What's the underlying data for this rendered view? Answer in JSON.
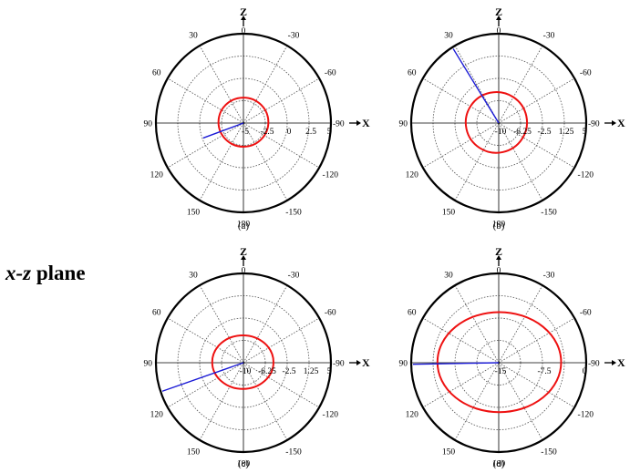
{
  "page": {
    "plane_label_italic": "x-z",
    "plane_label_rest": " plane"
  },
  "colors": {
    "pattern": "#ee1111",
    "beam": "#1a1ad6",
    "grid": "#555555",
    "frame": "#000000"
  },
  "chart_data": [
    {
      "type": "polar",
      "caption": "(a)",
      "z_label": "Z",
      "x_label": "X",
      "angle_ticks": [
        "0",
        "-30",
        "-60",
        "-90",
        "-120",
        "-150",
        "180",
        "150",
        "120",
        "90",
        "60",
        "30"
      ],
      "radial_ticks": [
        "-5",
        "-2.5",
        "0",
        "2.5",
        "5"
      ],
      "radial_range": [
        -5,
        5
      ],
      "grid": true,
      "pattern": {
        "radius_x": 2.85,
        "radius_z": 2.75,
        "center_x": 0,
        "center_z": 0.1
      },
      "beam": {
        "angle_deg": 110,
        "length": 4.9
      }
    },
    {
      "type": "polar",
      "caption": "(b)",
      "z_label": "Z",
      "x_label": "X",
      "angle_ticks": [
        "0",
        "-30",
        "-60",
        "-90",
        "-120",
        "-150",
        "180",
        "150",
        "120",
        "90",
        "60",
        "30"
      ],
      "radial_ticks": [
        "-10",
        "-6.25",
        "-2.5",
        "1.25",
        "5"
      ],
      "radial_range": [
        -10,
        5
      ],
      "grid": true,
      "pattern": {
        "radius_x": 5.25,
        "radius_z": 5.1,
        "center_x": -0.4,
        "center_z": 0.1,
        "rotation": -12
      },
      "beam": {
        "angle_deg": 32,
        "length": 14.7
      }
    },
    {
      "type": "polar",
      "caption": "(c)",
      "z_label": "Z",
      "x_label": "X",
      "angle_ticks": [
        "0",
        "-30",
        "-60",
        "-90",
        "-120",
        "-150",
        "180",
        "150",
        "120",
        "90",
        "60",
        "30"
      ],
      "radial_ticks": [
        "-10",
        "-6.25",
        "-2.5",
        "1.25",
        "5"
      ],
      "radial_range": [
        -10,
        5
      ],
      "grid": true,
      "pattern": {
        "radius_x": 5.25,
        "radius_z": 4.5,
        "center_x": -0.1,
        "center_z": 0.1
      },
      "beam": {
        "angle_deg": 109,
        "length": 14.7
      }
    },
    {
      "type": "polar",
      "caption": "(d)",
      "z_label": "Z",
      "x_label": "X",
      "angle_ticks": [
        "0",
        "-30",
        "-60",
        "-90",
        "-120",
        "-150",
        "180",
        "150",
        "120",
        "90",
        "60",
        "30"
      ],
      "radial_ticks": [
        "-15",
        "-7.5",
        "0"
      ],
      "radial_range": [
        -15,
        0
      ],
      "grid": true,
      "pattern": {
        "radius_x": 10.6,
        "radius_z": 8.4,
        "center_x": 0.1,
        "center_z": 0.1
      },
      "beam": {
        "angle_deg": 91,
        "length": 14.7
      }
    }
  ]
}
